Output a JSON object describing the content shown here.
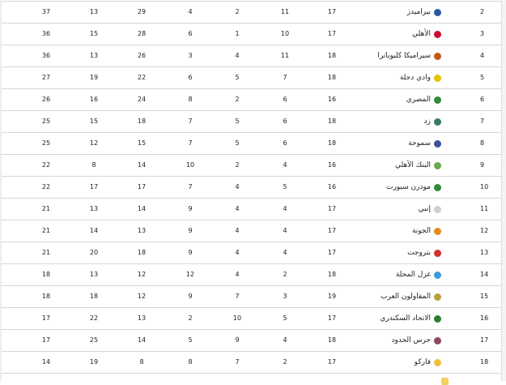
{
  "rows": [
    {
      "rank": "2",
      "team": "بيراميدز",
      "logo_color": "#2a5aa0",
      "played": "17",
      "c1": "11",
      "c2": "2",
      "c3": "4",
      "gf": "29",
      "ga": "13",
      "pts": "37"
    },
    {
      "rank": "3",
      "team": "الأهلي",
      "logo_color": "#c8102e",
      "played": "17",
      "c1": "10",
      "c2": "1",
      "c3": "6",
      "gf": "28",
      "ga": "15",
      "pts": "36"
    },
    {
      "rank": "4",
      "team": "سيراميكا كليوباترا",
      "logo_color": "#c05a1a",
      "played": "18",
      "c1": "11",
      "c2": "4",
      "c3": "3",
      "gf": "26",
      "ga": "13",
      "pts": "36"
    },
    {
      "rank": "5",
      "team": "وادي دجلة",
      "logo_color": "#e6c300",
      "played": "18",
      "c1": "7",
      "c2": "5",
      "c3": "6",
      "gf": "22",
      "ga": "19",
      "pts": "27"
    },
    {
      "rank": "6",
      "team": "المصري",
      "logo_color": "#2e8b3a",
      "played": "16",
      "c1": "6",
      "c2": "2",
      "c3": "8",
      "gf": "24",
      "ga": "16",
      "pts": "26"
    },
    {
      "rank": "7",
      "team": "زد",
      "logo_color": "#3b7a6a",
      "played": "18",
      "c1": "6",
      "c2": "5",
      "c3": "7",
      "gf": "18",
      "ga": "15",
      "pts": "25"
    },
    {
      "rank": "8",
      "team": "سموحة",
      "logo_color": "#3d4f9a",
      "played": "18",
      "c1": "6",
      "c2": "5",
      "c3": "7",
      "gf": "15",
      "ga": "12",
      "pts": "25"
    },
    {
      "rank": "9",
      "team": "البنك الأهلي",
      "logo_color": "#6aa84f",
      "played": "16",
      "c1": "4",
      "c2": "2",
      "c3": "10",
      "gf": "14",
      "ga": "8",
      "pts": "22"
    },
    {
      "rank": "10",
      "team": "مودرن سبورت",
      "logo_color": "#2e8b3a",
      "played": "16",
      "c1": "5",
      "c2": "4",
      "c3": "7",
      "gf": "17",
      "ga": "17",
      "pts": "22"
    },
    {
      "rank": "11",
      "team": "إنبي",
      "logo_color": "#d0d0d0",
      "played": "17",
      "c1": "4",
      "c2": "4",
      "c3": "9",
      "gf": "14",
      "ga": "13",
      "pts": "21"
    },
    {
      "rank": "12",
      "team": "الجونة",
      "logo_color": "#e08a1e",
      "played": "17",
      "c1": "4",
      "c2": "4",
      "c3": "9",
      "gf": "13",
      "ga": "14",
      "pts": "21"
    },
    {
      "rank": "13",
      "team": "بتروجت",
      "logo_color": "#d32f2f",
      "played": "17",
      "c1": "4",
      "c2": "4",
      "c3": "9",
      "gf": "18",
      "ga": "20",
      "pts": "21"
    },
    {
      "rank": "14",
      "team": "غزل المحلة",
      "logo_color": "#3a9ad9",
      "played": "18",
      "c1": "2",
      "c2": "4",
      "c3": "12",
      "gf": "12",
      "ga": "13",
      "pts": "18"
    },
    {
      "rank": "15",
      "team": "المقاولون العرب",
      "logo_color": "#b8a040",
      "played": "19",
      "c1": "3",
      "c2": "7",
      "c3": "9",
      "gf": "12",
      "ga": "18",
      "pts": "18"
    },
    {
      "rank": "16",
      "team": "الاتحاد السكندري",
      "logo_color": "#2e7d32",
      "played": "17",
      "c1": "5",
      "c2": "10",
      "c3": "2",
      "gf": "13",
      "ga": "22",
      "pts": "17"
    },
    {
      "rank": "17",
      "team": "حرس الحدود",
      "logo_color": "#8a4a5a",
      "played": "18",
      "c1": "4",
      "c2": "9",
      "c3": "5",
      "gf": "14",
      "ga": "25",
      "pts": "17"
    },
    {
      "rank": "18",
      "team": "فاركو",
      "logo_color": "#f0c040",
      "played": "17",
      "c1": "2",
      "c2": "7",
      "c3": "8",
      "gf": "8",
      "ga": "19",
      "pts": "14"
    }
  ],
  "partial_row_logo_color": "#f0d060"
}
